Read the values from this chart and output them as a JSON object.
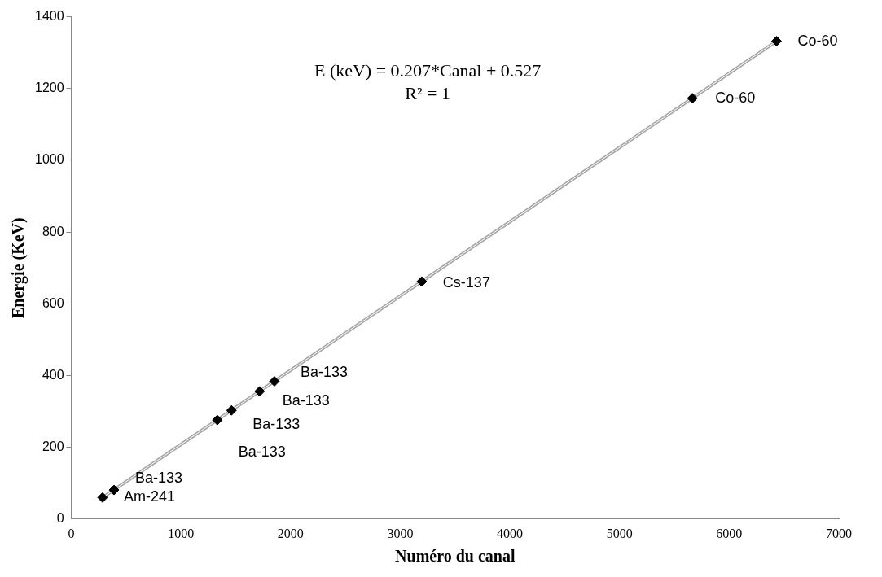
{
  "chart_data": {
    "type": "scatter",
    "xlabel": "Numéro du canal",
    "ylabel": "Energie (KeV)",
    "xlim": [
      0,
      7000
    ],
    "xticks": [
      0,
      1000,
      2000,
      3000,
      4000,
      5000,
      6000,
      7000
    ],
    "ylim": [
      0,
      1400
    ],
    "yticks": [
      0,
      200,
      400,
      600,
      800,
      1000,
      1200,
      1400
    ],
    "grid": false,
    "legend": false,
    "marker": "diamond",
    "series": [
      {
        "type": "line",
        "color": "#a6a6a6",
        "x": [
          285,
          6432
        ],
        "values": [
          60,
          1332
        ],
        "marker": "none"
      },
      {
        "type": "scatter",
        "color": "#000000",
        "x": [
          285,
          389,
          1331,
          1461,
          1717,
          1852,
          3196,
          5664,
          6432
        ],
        "values": [
          60,
          81,
          276,
          303,
          356,
          384,
          662,
          1173,
          1332
        ]
      }
    ],
    "annotations": [
      "E (keV) = 0.207*Canal + 0.527",
      "R² = 1",
      {
        "text": "Am-241",
        "x": 285,
        "y": 60
      },
      {
        "text": "Ba-133",
        "x": 389,
        "y": 81
      },
      {
        "text": "Ba-133",
        "x": 1331,
        "y": 276
      },
      {
        "text": "Ba-133",
        "x": 1461,
        "y": 303
      },
      {
        "text": "Ba-133",
        "x": 1717,
        "y": 356
      },
      {
        "text": "Ba-133",
        "x": 1852,
        "y": 384
      },
      {
        "text": "Cs-137",
        "x": 3196,
        "y": 662
      },
      {
        "text": "Co-60",
        "x": 5664,
        "y": 1173
      },
      {
        "text": "Co-60",
        "x": 6432,
        "y": 1332
      }
    ]
  }
}
